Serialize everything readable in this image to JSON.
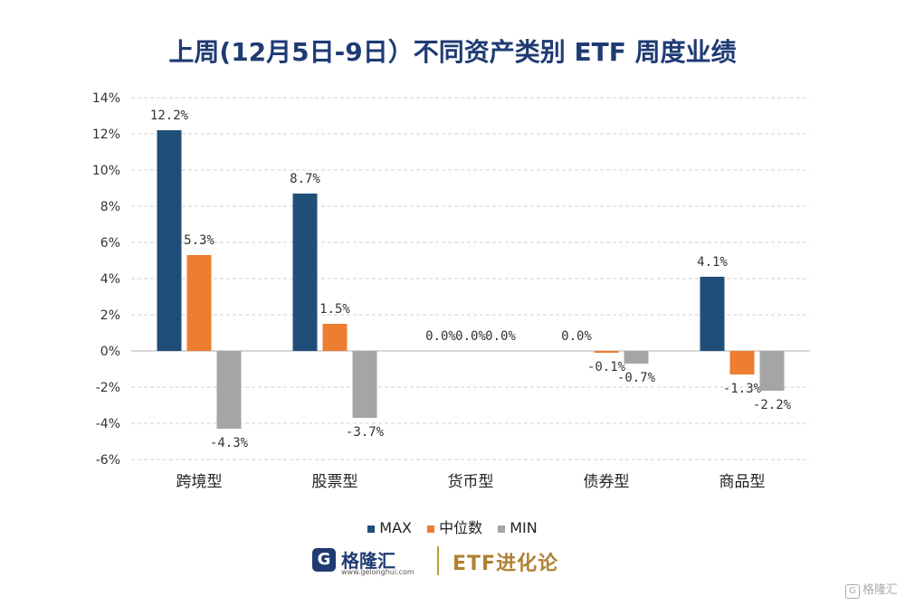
{
  "chart_data": {
    "type": "bar",
    "title": "上周(12月5日-9日）不同资产类别 ETF 周度业绩",
    "categories": [
      "跨境型",
      "股票型",
      "货币型",
      "债券型",
      "商品型"
    ],
    "series": [
      {
        "name": "MAX",
        "color": "#1f4e79",
        "values": [
          12.2,
          8.7,
          0.0,
          0.0,
          4.1
        ],
        "labels": [
          "12.2%",
          "8.7%",
          "0.0%",
          "0.0%",
          "4.1%"
        ]
      },
      {
        "name": "中位数",
        "color": "#ed7d31",
        "values": [
          5.3,
          1.5,
          0.0,
          -0.1,
          -1.3
        ],
        "labels": [
          "5.3%",
          "1.5%",
          "0.0%",
          "-0.1%",
          "-1.3%"
        ]
      },
      {
        "name": "MIN",
        "color": "#a5a5a5",
        "values": [
          -4.3,
          -3.7,
          0.0,
          -0.7,
          -2.2
        ],
        "labels": [
          "-4.3%",
          "-3.7%",
          "0.0%",
          "-0.7%",
          "-2.2%"
        ]
      }
    ],
    "ylim": [
      -6,
      14
    ],
    "yticks": [
      14,
      12,
      10,
      8,
      6,
      4,
      2,
      0,
      -2,
      -4,
      -6
    ],
    "ytick_labels": [
      "14%",
      "12%",
      "10%",
      "8%",
      "6%",
      "4%",
      "2%",
      "0%",
      "-2%",
      "-4%",
      "-6%"
    ],
    "grid": true,
    "legend": "bottom-center",
    "xlabel": "",
    "ylabel": ""
  },
  "footer": {
    "logo_mark": "G",
    "logo_name": "格隆汇",
    "logo_url": "www.gelonghui.com",
    "brand": "ETF进化论"
  },
  "watermark": {
    "icon": "G",
    "text": "格隆汇"
  }
}
